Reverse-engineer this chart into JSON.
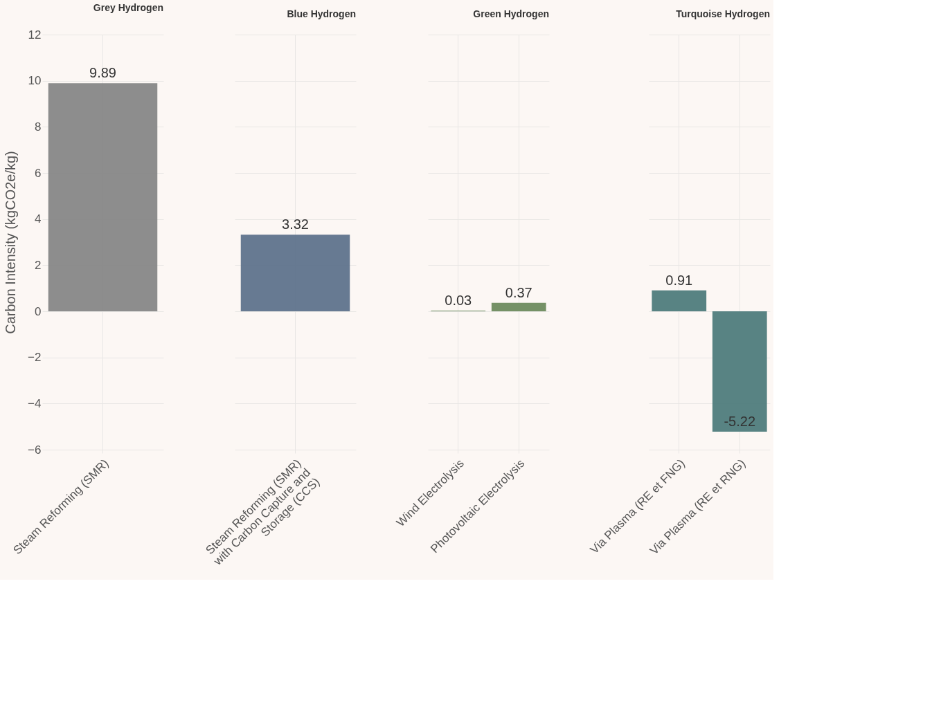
{
  "chart_data": [
    {
      "type": "bar",
      "title": "Grey Hydrogen",
      "ylabel": "Carbon Intensity (kgCO2e/kg)",
      "categories": [
        "Steam Reforming (SMR)"
      ],
      "values": [
        9.89
      ],
      "colors": [
        "#878787"
      ],
      "ylim": [
        -6,
        12
      ],
      "yticks": [
        -6,
        -4,
        -2,
        0,
        2,
        4,
        6,
        8,
        10,
        12
      ],
      "grid": true,
      "data_labels": true
    },
    {
      "type": "bar",
      "title": "Blue Hydrogen",
      "categories": [
        "Steam Reforming (SMR) with Carbon Capture and Storage (CCS)"
      ],
      "values": [
        3.32
      ],
      "colors": [
        "#5f738c"
      ],
      "ylim": [
        -6,
        12
      ],
      "yticks": [
        -6,
        -4,
        -2,
        0,
        2,
        4,
        6,
        8,
        10,
        12
      ],
      "grid": true,
      "data_labels": true,
      "tick_labels": "x"
    },
    {
      "type": "bar",
      "title": "Green Hydrogen",
      "categories": [
        "Wind Electrolysis",
        "Photovoltaic Electrolysis"
      ],
      "values": [
        0.03,
        0.37
      ],
      "colors": [
        "#6e8b5e",
        "#6e8b5e"
      ],
      "ylim": [
        -6,
        12
      ],
      "yticks": [
        -6,
        -4,
        -2,
        0,
        2,
        4,
        6,
        8,
        10,
        12
      ],
      "grid": true,
      "data_labels": true,
      "tick_labels": "x"
    },
    {
      "type": "bar",
      "title": "Turquoise Hydrogen",
      "categories": [
        "Via Plasma (RE et FNG)",
        "Via Plasma (RE et RNG)"
      ],
      "values": [
        0.91,
        -5.22
      ],
      "colors": [
        "#4f7c7c",
        "#4f7c7c"
      ],
      "ylim": [
        -6,
        12
      ],
      "yticks": [
        -6,
        -4,
        -2,
        0,
        2,
        4,
        6,
        8,
        10,
        12
      ],
      "grid": true,
      "data_labels": true,
      "tick_labels": "x"
    }
  ]
}
